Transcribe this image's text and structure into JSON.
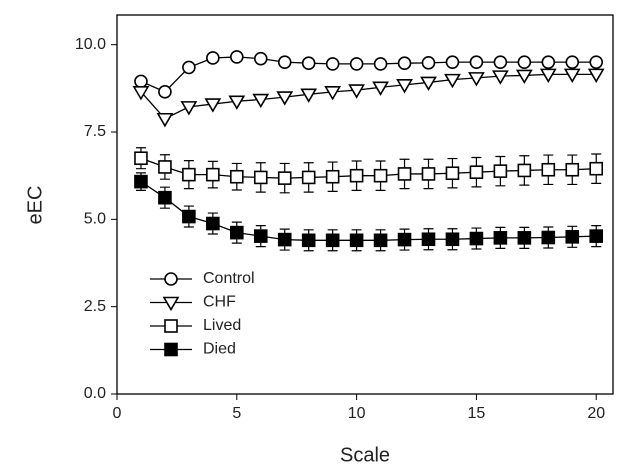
{
  "chart_data": {
    "type": "line",
    "x_label": "Scale",
    "y_label": "eEC",
    "x": [
      1,
      2,
      3,
      4,
      5,
      6,
      7,
      8,
      9,
      10,
      11,
      12,
      13,
      14,
      15,
      16,
      17,
      18,
      19,
      20
    ],
    "xlim": [
      0,
      20.7
    ],
    "xticks": [
      0,
      5,
      10,
      15,
      20
    ],
    "ylim": [
      0,
      10.85
    ],
    "yticks": [
      {
        "value": 0,
        "label": "0.0"
      },
      {
        "value": 2.5,
        "label": "2.5"
      },
      {
        "value": 5,
        "label": "5.0"
      },
      {
        "value": 7.5,
        "label": "7.5"
      },
      {
        "value": 10,
        "label": "10.0"
      }
    ],
    "legend": "lower left",
    "series": [
      {
        "name": "Control",
        "color": "#000000",
        "marker": "circle",
        "filled": false,
        "values": [
          8.95,
          8.65,
          9.35,
          9.62,
          9.65,
          9.6,
          9.5,
          9.47,
          9.45,
          9.45,
          9.45,
          9.47,
          9.48,
          9.5,
          9.5,
          9.5,
          9.5,
          9.5,
          9.5,
          9.5
        ]
      },
      {
        "name": "CHF",
        "color": "#000000",
        "marker": "triangle-down",
        "filled": false,
        "values": [
          8.65,
          7.88,
          8.22,
          8.3,
          8.38,
          8.43,
          8.5,
          8.58,
          8.65,
          8.7,
          8.78,
          8.85,
          8.92,
          9.0,
          9.05,
          9.1,
          9.12,
          9.15,
          9.15,
          9.15
        ]
      },
      {
        "name": "Lived",
        "color": "#000000",
        "marker": "square",
        "filled": false,
        "values": [
          6.75,
          6.5,
          6.28,
          6.28,
          6.22,
          6.2,
          6.18,
          6.2,
          6.22,
          6.25,
          6.25,
          6.3,
          6.3,
          6.32,
          6.35,
          6.38,
          6.4,
          6.42,
          6.42,
          6.45
        ],
        "errors": [
          0.3,
          0.35,
          0.4,
          0.38,
          0.38,
          0.42,
          0.42,
          0.42,
          0.42,
          0.42,
          0.42,
          0.42,
          0.42,
          0.42,
          0.42,
          0.42,
          0.42,
          0.42,
          0.42,
          0.42
        ]
      },
      {
        "name": "Died",
        "color": "#000000",
        "marker": "square",
        "filled": true,
        "values": [
          6.08,
          5.62,
          5.08,
          4.88,
          4.62,
          4.52,
          4.42,
          4.4,
          4.4,
          4.4,
          4.4,
          4.42,
          4.43,
          4.43,
          4.45,
          4.47,
          4.47,
          4.48,
          4.5,
          4.52
        ],
        "errors": [
          0.25,
          0.3,
          0.3,
          0.3,
          0.3,
          0.3,
          0.3,
          0.3,
          0.3,
          0.3,
          0.3,
          0.3,
          0.3,
          0.3,
          0.3,
          0.3,
          0.3,
          0.3,
          0.3,
          0.3
        ]
      }
    ]
  }
}
